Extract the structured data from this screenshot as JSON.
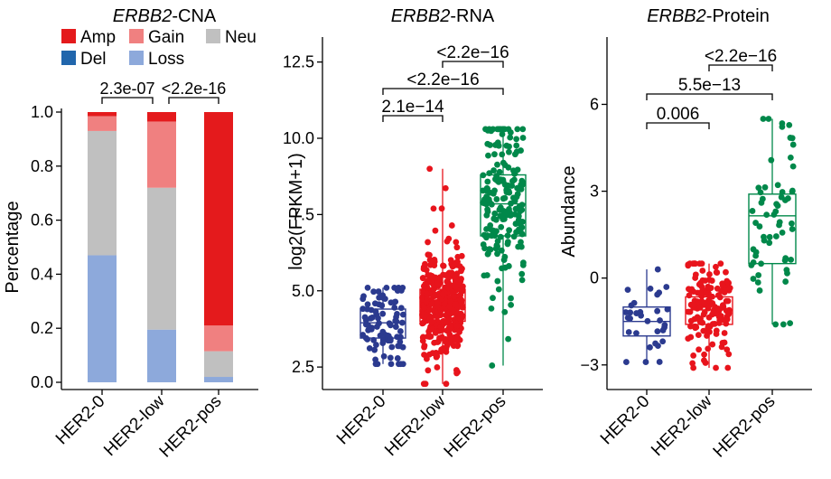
{
  "chart_data": [
    {
      "type": "bar",
      "stacked": true,
      "title_gene": "ERBB2",
      "title_suffix": "-CNA",
      "ylabel": "Percentage",
      "ylim": [
        0,
        1
      ],
      "yticks": [
        "0.0",
        "0.2",
        "0.4",
        "0.6",
        "0.8",
        "1.0"
      ],
      "categories": [
        "HER2-0",
        "HER2-low",
        "HER2-pos"
      ],
      "legend": [
        {
          "name": "Amp",
          "color": "#e41a1c"
        },
        {
          "name": "Gain",
          "color": "#f08080"
        },
        {
          "name": "Neu",
          "color": "#c0c0c0"
        },
        {
          "name": "Del",
          "color": "#2166ac"
        },
        {
          "name": "Loss",
          "color": "#8da9db"
        }
      ],
      "series": [
        {
          "name": "Loss",
          "color": "#8da9db",
          "values": [
            0.47,
            0.195,
            0.02
          ]
        },
        {
          "name": "Neu",
          "color": "#c0c0c0",
          "values": [
            0.46,
            0.525,
            0.095
          ]
        },
        {
          "name": "Gain",
          "color": "#f08080",
          "values": [
            0.055,
            0.245,
            0.095
          ]
        },
        {
          "name": "Amp",
          "color": "#e41a1c",
          "values": [
            0.015,
            0.035,
            0.79
          ]
        }
      ],
      "comparisons": [
        {
          "from": 0,
          "to": 1,
          "label": "2.3e-07"
        },
        {
          "from": 1,
          "to": 2,
          "label": "<2.2e-16"
        }
      ]
    },
    {
      "type": "box",
      "title_gene": "ERBB2",
      "title_suffix": "-RNA",
      "ylabel": "log2(FPKM+1)",
      "ylim": [
        2.0,
        13.2
      ],
      "yticks": [
        "2.5",
        "5.0",
        "7.5",
        "10.0",
        "12.5"
      ],
      "categories": [
        "HER2-0",
        "HER2-low",
        "HER2-pos"
      ],
      "series": [
        {
          "name": "HER2-0",
          "color": "#2b3a8f",
          "n": 90,
          "min": 2.6,
          "q1": 3.45,
          "median": 3.95,
          "q3": 4.4,
          "max": 5.1
        },
        {
          "name": "HER2-low",
          "color": "#e8141c",
          "n": 380,
          "min": 1.95,
          "q1": 4.0,
          "median": 4.55,
          "q3": 5.05,
          "max": 9.0
        },
        {
          "name": "HER2-pos",
          "color": "#00884a",
          "n": 190,
          "min": 2.55,
          "q1": 6.8,
          "median": 7.85,
          "q3": 8.8,
          "max": 10.3
        }
      ],
      "comparisons": [
        {
          "from": 0,
          "to": 1,
          "label": "2.1e−14"
        },
        {
          "from": 0,
          "to": 2,
          "label": "<2.2e−16"
        },
        {
          "from": 1,
          "to": 2,
          "label": "<2.2e−16"
        }
      ]
    },
    {
      "type": "box",
      "title_gene": "ERBB2",
      "title_suffix": "-Protein",
      "ylabel": "Abundance",
      "ylim": [
        -3.6,
        8.2
      ],
      "yticks": [
        "−3",
        "0",
        "3",
        "6"
      ],
      "ytick_values": [
        -3,
        0,
        3,
        6
      ],
      "categories": [
        "HER2-0",
        "HER2-low",
        "HER2-pos"
      ],
      "series": [
        {
          "name": "HER2-0",
          "color": "#2b3a8f",
          "n": 32,
          "min": -2.9,
          "q1": -2.0,
          "median": -1.5,
          "q3": -1.0,
          "max": 0.3
        },
        {
          "name": "HER2-low",
          "color": "#e8141c",
          "n": 150,
          "min": -3.1,
          "q1": -1.6,
          "median": -1.1,
          "q3": -0.65,
          "max": 0.5
        },
        {
          "name": "HER2-pos",
          "color": "#00884a",
          "n": 60,
          "min": -1.6,
          "q1": 0.5,
          "median": 2.15,
          "q3": 2.9,
          "max": 5.5
        }
      ],
      "comparisons": [
        {
          "from": 0,
          "to": 1,
          "label": "0.006"
        },
        {
          "from": 0,
          "to": 2,
          "label": "5.5e−13"
        },
        {
          "from": 1,
          "to": 2,
          "label": "<2.2e−16"
        }
      ]
    }
  ]
}
